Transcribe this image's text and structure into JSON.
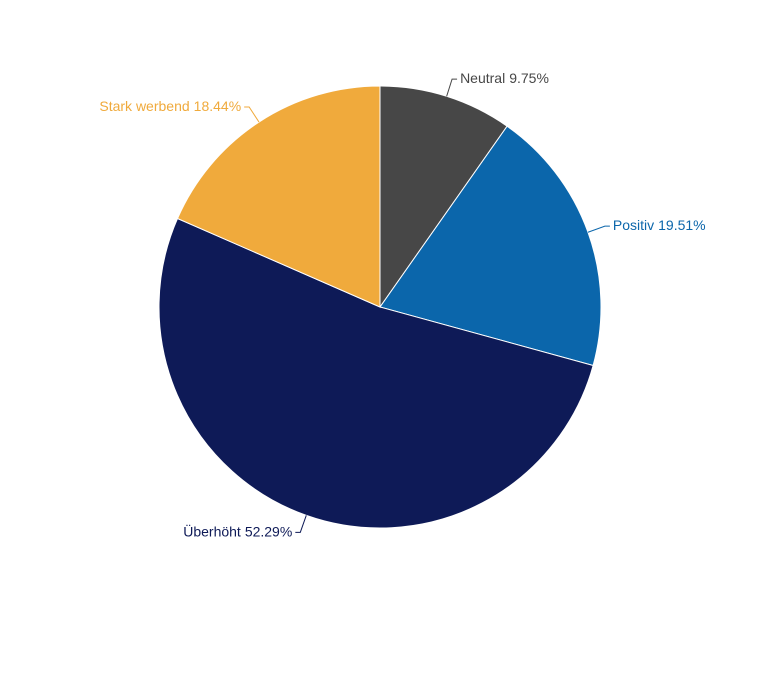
{
  "chart_data": {
    "type": "pie",
    "categories": [
      "Neutral",
      "Positiv",
      "Überhöht",
      "Stark werbend"
    ],
    "values": [
      9.75,
      19.51,
      52.29,
      18.44
    ],
    "value_labels": [
      "9.75%",
      "19.51%",
      "52.29%",
      "18.44%"
    ],
    "colors": [
      "#474747",
      "#0b66ab",
      "#0e1a57",
      "#f0aa3c"
    ]
  }
}
